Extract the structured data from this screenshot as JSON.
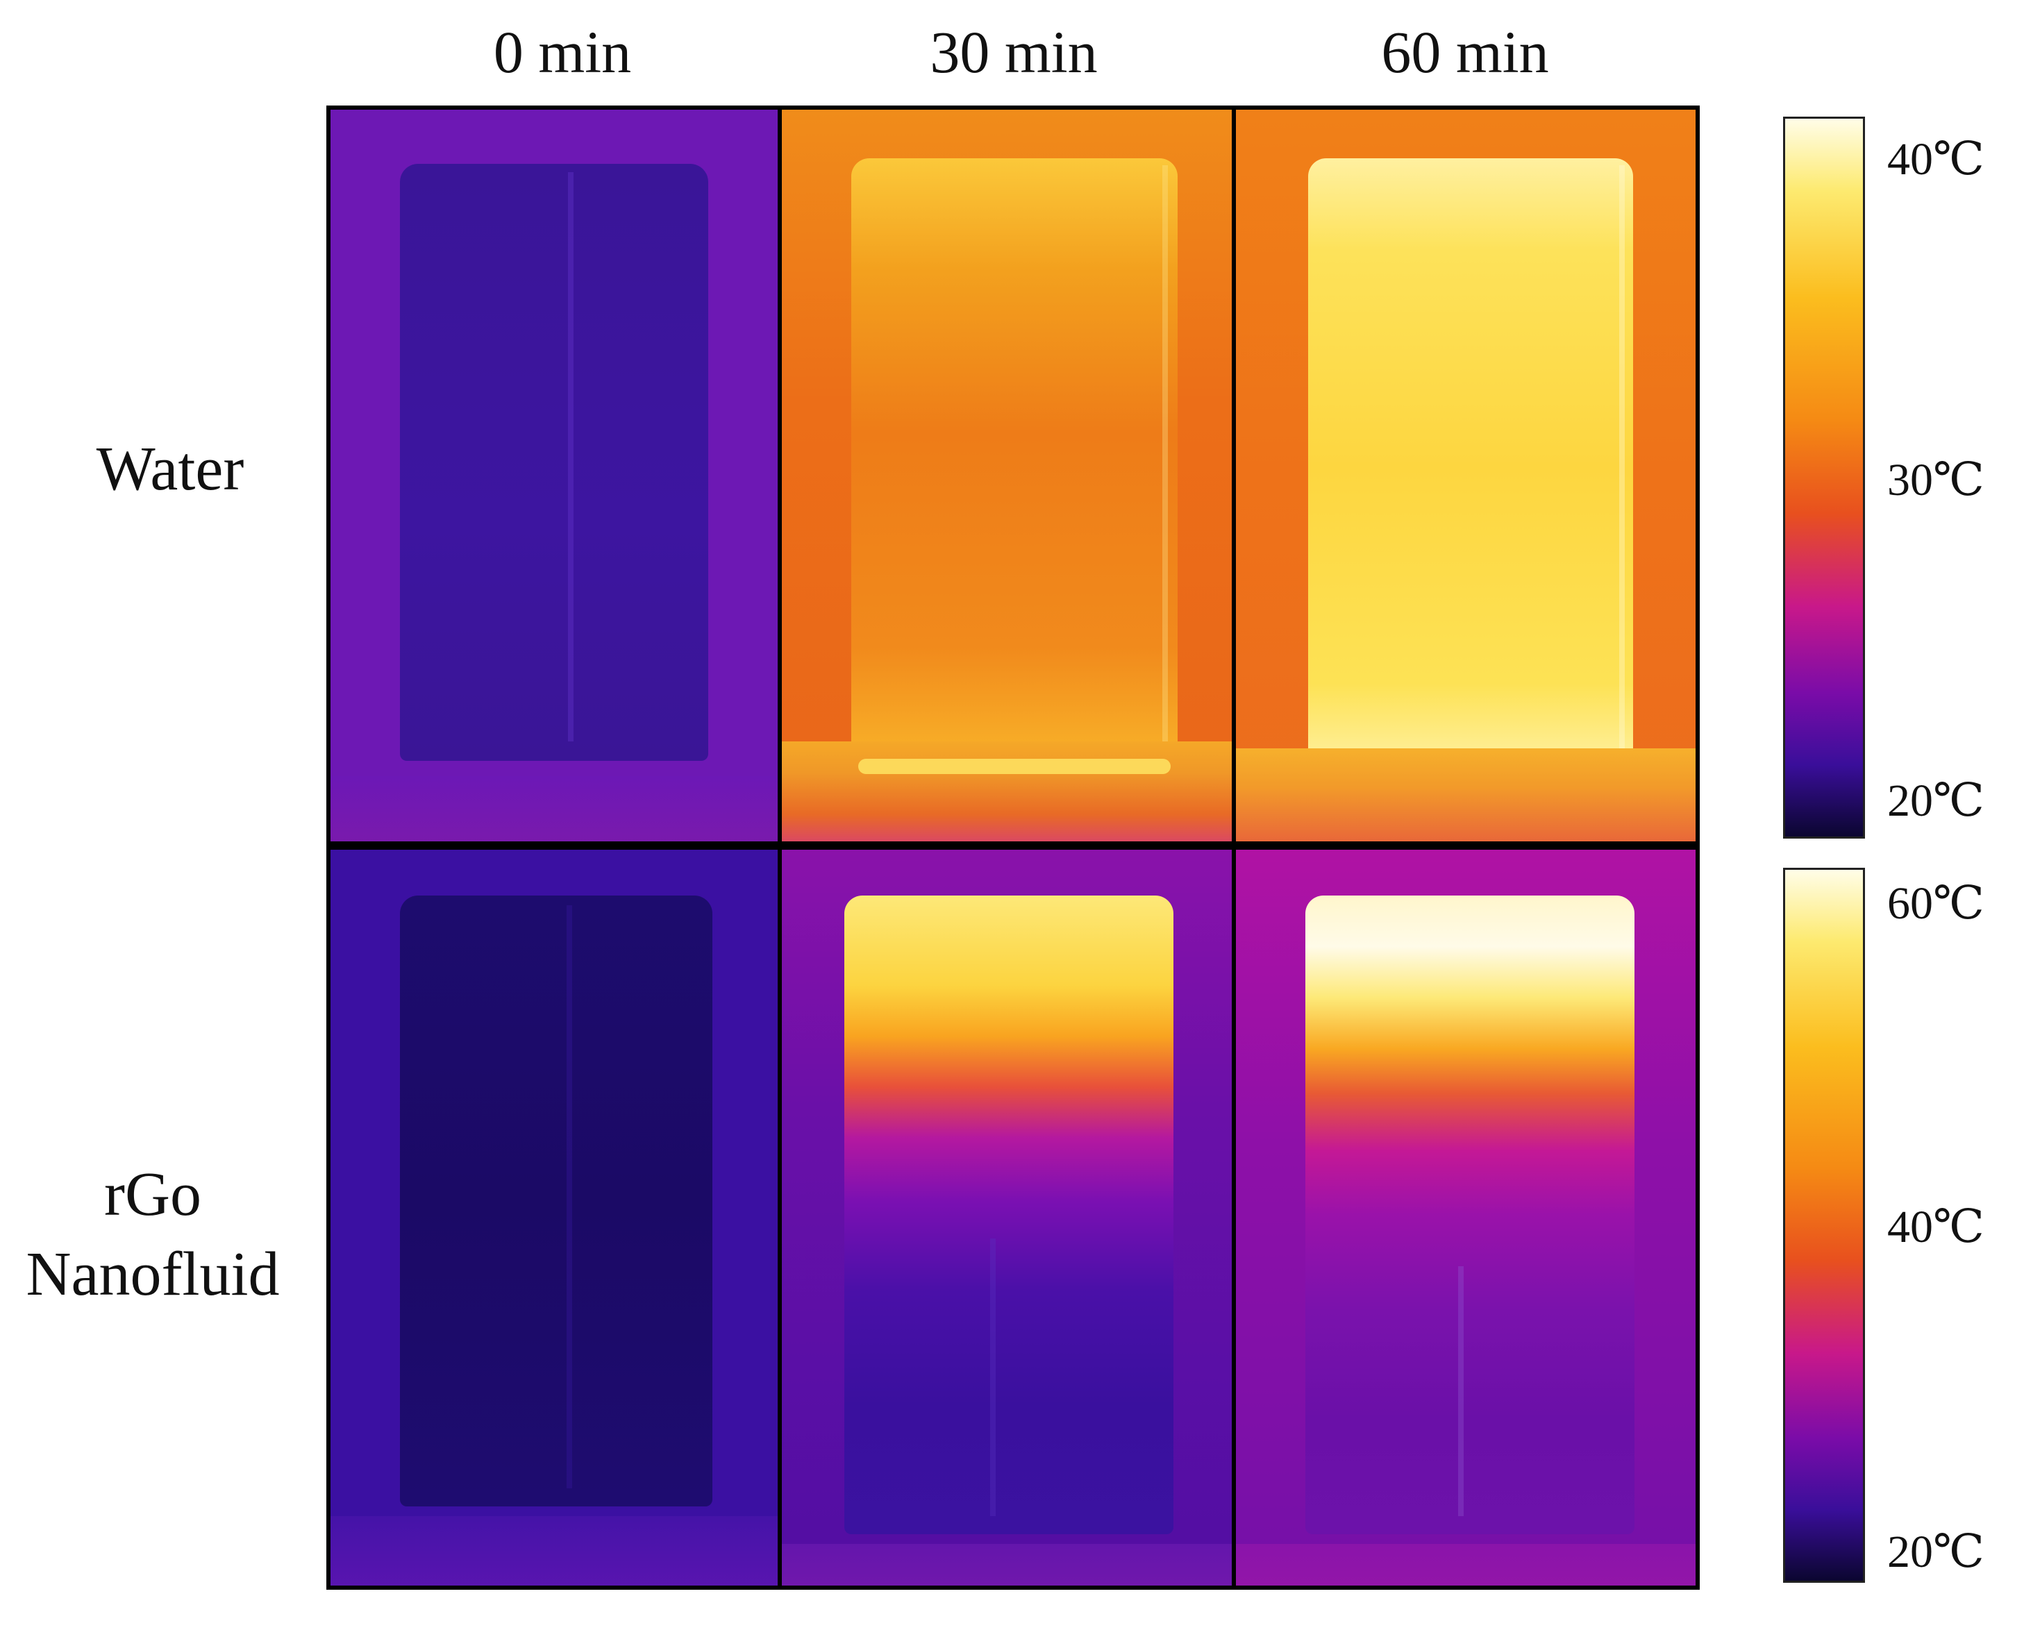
{
  "columns": [
    {
      "label": "0 min"
    },
    {
      "label": "30 min"
    },
    {
      "label": "60 min"
    }
  ],
  "rows": [
    {
      "label": "Water"
    },
    {
      "label_line1": "rGo",
      "label_line2": "Nanofluid"
    }
  ],
  "colorbars": [
    {
      "max_label": "40℃",
      "mid_label": "30℃",
      "min_label": "20℃"
    },
    {
      "max_label": "60℃",
      "mid_label": "40℃",
      "min_label": "20℃"
    }
  ],
  "palette": {
    "deep": "#0b0630",
    "indigo": "#2a0e8a",
    "violet": "#5a0aa0",
    "magenta": "#a4109e",
    "red": "#e2283a",
    "orange": "#f07a10",
    "amber": "#fbb515",
    "yellow": "#fde34a",
    "white": "#fffbe6"
  }
}
